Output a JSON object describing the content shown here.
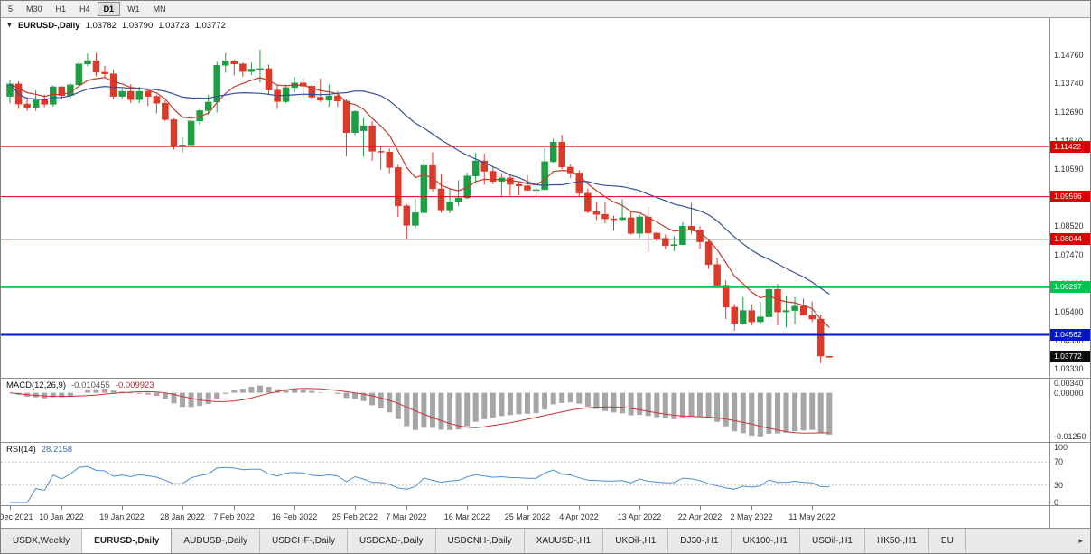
{
  "toolbar": {
    "timeframes": [
      "5",
      "M30",
      "H1",
      "H4",
      "D1",
      "W1",
      "MN"
    ],
    "active": "D1"
  },
  "chart_header": {
    "dropdown_icon": "▼",
    "symbol": "EURUSD-,Daily",
    "open": "1.03782",
    "high": "1.03790",
    "low": "1.03723",
    "close": "1.03772"
  },
  "price_axis": {
    "labels": [
      "1.14760",
      "1.13740",
      "1.12690",
      "1.11640",
      "1.10590",
      "1.09540",
      "1.08520",
      "1.07470",
      "1.06420",
      "1.05400",
      "1.04350",
      "1.03330"
    ],
    "current": {
      "value": "1.03772",
      "color": "#0d0d0d"
    }
  },
  "chart_data": {
    "type": "candlestick",
    "title": "EURUSD-,Daily",
    "symbol": "EURUSD",
    "period": "Daily",
    "up_color": "#1d9e44",
    "down_color": "#dc3a29",
    "y_axis": {
      "top": 1.161,
      "bottom": 1.03
    },
    "dates": [
      "2021.12.31",
      "2022.01.03",
      "2022.01.04",
      "2022.01.05",
      "2022.01.06",
      "2022.01.07",
      "2022.01.10",
      "2022.01.11",
      "2022.01.12",
      "2022.01.13",
      "2022.01.14",
      "2022.01.17",
      "2022.01.18",
      "2022.01.19",
      "2022.01.20",
      "2022.01.21",
      "2022.01.24",
      "2022.01.25",
      "2022.01.26",
      "2022.01.27",
      "2022.01.28",
      "2022.01.31",
      "2022.02.01",
      "2022.02.02",
      "2022.02.03",
      "2022.02.04",
      "2022.02.07",
      "2022.02.08",
      "2022.02.09",
      "2022.02.10",
      "2022.02.11",
      "2022.02.14",
      "2022.02.15",
      "2022.02.16",
      "2022.02.17",
      "2022.02.18",
      "2022.02.21",
      "2022.02.22",
      "2022.02.23",
      "2022.02.24",
      "2022.02.25",
      "2022.02.28",
      "2022.03.01",
      "2022.03.02",
      "2022.03.03",
      "2022.03.04",
      "2022.03.07",
      "2022.03.08",
      "2022.03.09",
      "2022.03.10",
      "2022.03.11",
      "2022.03.14",
      "2022.03.15",
      "2022.03.16",
      "2022.03.17",
      "2022.03.18",
      "2022.03.21",
      "2022.03.22",
      "2022.03.23",
      "2022.03.24",
      "2022.03.25",
      "2022.03.28",
      "2022.03.29",
      "2022.03.30",
      "2022.03.31",
      "2022.04.01",
      "2022.04.04",
      "2022.04.05",
      "2022.04.06",
      "2022.04.07",
      "2022.04.08",
      "2022.04.11",
      "2022.04.12",
      "2022.04.13",
      "2022.04.14",
      "2022.04.15",
      "2022.04.18",
      "2022.04.19",
      "2022.04.20",
      "2022.04.21",
      "2022.04.22",
      "2022.04.25",
      "2022.04.26",
      "2022.04.27",
      "2022.04.28",
      "2022.04.29",
      "2022.05.02",
      "2022.05.03",
      "2022.05.04",
      "2022.05.05",
      "2022.05.06",
      "2022.05.09",
      "2022.05.10",
      "2022.05.11",
      "2022.05.12",
      "2022.05.13"
    ],
    "ohlc": [
      [
        1.1325,
        1.1386,
        1.13,
        1.137
      ],
      [
        1.137,
        1.1379,
        1.1279,
        1.1297
      ],
      [
        1.1297,
        1.1323,
        1.1272,
        1.1285
      ],
      [
        1.1285,
        1.1347,
        1.1272,
        1.1312
      ],
      [
        1.1312,
        1.1332,
        1.1285,
        1.1296
      ],
      [
        1.1296,
        1.1365,
        1.1288,
        1.136
      ],
      [
        1.136,
        1.1362,
        1.1314,
        1.1328
      ],
      [
        1.1328,
        1.1374,
        1.1314,
        1.1367
      ],
      [
        1.1367,
        1.1453,
        1.136,
        1.1443
      ],
      [
        1.1443,
        1.1481,
        1.1435,
        1.1455
      ],
      [
        1.1455,
        1.1483,
        1.1398,
        1.1413
      ],
      [
        1.1413,
        1.1436,
        1.1392,
        1.1407
      ],
      [
        1.1407,
        1.1422,
        1.1314,
        1.1325
      ],
      [
        1.1325,
        1.1358,
        1.1318,
        1.1343
      ],
      [
        1.1343,
        1.1369,
        1.1301,
        1.1313
      ],
      [
        1.1313,
        1.136,
        1.13,
        1.1343
      ],
      [
        1.1343,
        1.1349,
        1.129,
        1.1325
      ],
      [
        1.1325,
        1.1331,
        1.1263,
        1.13
      ],
      [
        1.13,
        1.131,
        1.1235,
        1.124
      ],
      [
        1.124,
        1.1245,
        1.1131,
        1.1145
      ],
      [
        1.1145,
        1.1175,
        1.1121,
        1.1148
      ],
      [
        1.1148,
        1.1248,
        1.114,
        1.1235
      ],
      [
        1.1235,
        1.1279,
        1.1221,
        1.1273
      ],
      [
        1.1273,
        1.133,
        1.1257,
        1.1304
      ],
      [
        1.1304,
        1.1451,
        1.1266,
        1.1438
      ],
      [
        1.1438,
        1.1483,
        1.1411,
        1.1454
      ],
      [
        1.1454,
        1.1459,
        1.1401,
        1.1443
      ],
      [
        1.1443,
        1.1448,
        1.1396,
        1.1415
      ],
      [
        1.1415,
        1.1448,
        1.1403,
        1.1424
      ],
      [
        1.1424,
        1.1495,
        1.1375,
        1.1426
      ],
      [
        1.1426,
        1.1441,
        1.133,
        1.1348
      ],
      [
        1.1348,
        1.1369,
        1.1279,
        1.1306
      ],
      [
        1.1306,
        1.1368,
        1.13,
        1.1357
      ],
      [
        1.1357,
        1.1395,
        1.134,
        1.1374
      ],
      [
        1.1374,
        1.1391,
        1.1324,
        1.1362
      ],
      [
        1.1362,
        1.1369,
        1.1312,
        1.1322
      ],
      [
        1.1322,
        1.139,
        1.1304,
        1.1311
      ],
      [
        1.1311,
        1.1368,
        1.1287,
        1.1327
      ],
      [
        1.1327,
        1.1344,
        1.1286,
        1.1308
      ],
      [
        1.1308,
        1.1315,
        1.1106,
        1.1193
      ],
      [
        1.1193,
        1.1274,
        1.1184,
        1.127
      ],
      [
        1.12,
        1.1246,
        1.1105,
        1.1218
      ],
      [
        1.1218,
        1.1234,
        1.109,
        1.1125
      ],
      [
        1.1125,
        1.1145,
        1.1058,
        1.1122
      ],
      [
        1.1122,
        1.1135,
        1.1045,
        1.1066
      ],
      [
        1.1066,
        1.1075,
        1.0886,
        1.0926
      ],
      [
        1.0926,
        1.0932,
        1.0806,
        1.0855
      ],
      [
        1.0855,
        1.095,
        1.0846,
        1.0901
      ],
      [
        1.0901,
        1.1095,
        1.0891,
        1.1073
      ],
      [
        1.1073,
        1.1121,
        1.0979,
        1.0988
      ],
      [
        1.0988,
        1.1043,
        1.0901,
        1.0911
      ],
      [
        1.0911,
        1.099,
        1.09,
        1.0941
      ],
      [
        1.0941,
        1.102,
        1.0925,
        1.0955
      ],
      [
        1.0955,
        1.1047,
        1.095,
        1.1035
      ],
      [
        1.1035,
        1.1119,
        1.1007,
        1.109
      ],
      [
        1.109,
        1.1117,
        1.1003,
        1.1052
      ],
      [
        1.1052,
        1.1071,
        1.1005,
        1.1015
      ],
      [
        1.1015,
        1.1046,
        1.0962,
        1.1028
      ],
      [
        1.1028,
        1.1044,
        1.0963,
        1.1004
      ],
      [
        1.1004,
        1.1014,
        1.0965,
        1.0999
      ],
      [
        1.0999,
        1.1038,
        1.098,
        1.0983
      ],
      [
        1.0983,
        1.0999,
        1.0944,
        1.0985
      ],
      [
        1.0985,
        1.1137,
        1.0982,
        1.1087
      ],
      [
        1.1087,
        1.1171,
        1.1083,
        1.1158
      ],
      [
        1.1158,
        1.1185,
        1.106,
        1.1067
      ],
      [
        1.1067,
        1.1077,
        1.1027,
        1.1046
      ],
      [
        1.1046,
        1.1056,
        1.096,
        1.0972
      ],
      [
        1.0972,
        1.0989,
        1.0899,
        1.0905
      ],
      [
        1.0905,
        1.0939,
        1.0874,
        1.0895
      ],
      [
        1.0895,
        1.0939,
        1.0863,
        1.0879
      ],
      [
        1.0879,
        1.089,
        1.0836,
        1.0876
      ],
      [
        1.0876,
        1.095,
        1.0872,
        1.0883
      ],
      [
        1.0883,
        1.0904,
        1.0821,
        1.0826
      ],
      [
        1.0826,
        1.0895,
        1.0809,
        1.0886
      ],
      [
        1.0886,
        1.0923,
        1.0757,
        1.0827
      ],
      [
        1.0827,
        1.0832,
        1.0796,
        1.0808
      ],
      [
        1.0808,
        1.0822,
        1.0769,
        1.0781
      ],
      [
        1.0781,
        1.0815,
        1.0761,
        1.0785
      ],
      [
        1.0785,
        1.0867,
        1.0783,
        1.0852
      ],
      [
        1.0852,
        1.0937,
        1.0824,
        1.0838
      ],
      [
        1.0838,
        1.0852,
        1.077,
        1.0795
      ],
      [
        1.0795,
        1.0801,
        1.0697,
        1.0712
      ],
      [
        1.0712,
        1.0738,
        1.0635,
        1.0637
      ],
      [
        1.0637,
        1.0655,
        1.0514,
        1.0557
      ],
      [
        1.0557,
        1.0568,
        1.0471,
        1.0498
      ],
      [
        1.0498,
        1.0593,
        1.0493,
        1.0545
      ],
      [
        1.0545,
        1.0567,
        1.049,
        1.0504
      ],
      [
        1.0504,
        1.0577,
        1.0494,
        1.0522
      ],
      [
        1.0522,
        1.0632,
        1.0507,
        1.0622
      ],
      [
        1.0622,
        1.0642,
        1.0492,
        1.054
      ],
      [
        1.054,
        1.0599,
        1.0483,
        1.0545
      ],
      [
        1.0545,
        1.0594,
        1.0495,
        1.0561
      ],
      [
        1.0561,
        1.0588,
        1.0526,
        1.0528
      ],
      [
        1.0528,
        1.0578,
        1.0503,
        1.0514
      ],
      [
        1.0514,
        1.053,
        1.0354,
        1.0379
      ],
      [
        1.03782,
        1.0379,
        1.03723,
        1.03772
      ]
    ],
    "moving_averages": [
      {
        "type": "ema",
        "period": 8,
        "color": "#c23b2e"
      },
      {
        "type": "sma",
        "period": 20,
        "color": "#33509b"
      }
    ],
    "hlines": [
      {
        "label": "1.11422",
        "price": 1.11422,
        "color": "#dd0000",
        "width": 1
      },
      {
        "label": "1.09596",
        "price": 1.09596,
        "color": "#dd0000",
        "width": 1
      },
      {
        "label": "1.08044",
        "price": 1.08044,
        "color": "#dd0000",
        "width": 1
      },
      {
        "label": "1.06297",
        "price": 1.06297,
        "color": "#00c44e",
        "width": 2
      },
      {
        "label": "1.04562",
        "price": 1.04562,
        "color": "#0016cc",
        "width": 2
      }
    ],
    "x_labels": [
      {
        "text": "31 Dec 2021",
        "index": 0
      },
      {
        "text": "10 Jan 2022",
        "index": 6
      },
      {
        "text": "19 Jan 2022",
        "index": 13
      },
      {
        "text": "28 Jan 2022",
        "index": 20
      },
      {
        "text": "7 Feb 2022",
        "index": 26
      },
      {
        "text": "16 Feb 2022",
        "index": 33
      },
      {
        "text": "25 Feb 2022",
        "index": 40
      },
      {
        "text": "7 Mar 2022",
        "index": 46
      },
      {
        "text": "16 Mar 2022",
        "index": 53
      },
      {
        "text": "25 Mar 2022",
        "index": 60
      },
      {
        "text": "4 Apr 2022",
        "index": 66
      },
      {
        "text": "13 Apr 2022",
        "index": 73
      },
      {
        "text": "22 Apr 2022",
        "index": 80
      },
      {
        "text": "2 May 2022",
        "index": 86
      },
      {
        "text": "11 May 2022",
        "index": 93
      }
    ]
  },
  "macd": {
    "label": "MACD(12,26,9)",
    "value_main": "-0.010455",
    "value_signal": "-0.009923",
    "params": {
      "fast": 12,
      "slow": 26,
      "signal": 9
    },
    "scale": {
      "top": 0.004,
      "bottom": -0.014
    },
    "axis_labels": [
      {
        "text": "0.00340",
        "value": 0.0034
      },
      {
        "text": "0.00000",
        "value": 0.0
      },
      {
        "text": "-0.01250",
        "value": -0.0125
      }
    ],
    "colors": {
      "histogram": "#a6a6a6",
      "signal": "#cc3333"
    }
  },
  "rsi": {
    "label": "RSI(14)",
    "value": "28.2158",
    "period": 14,
    "levels": [
      70,
      30
    ],
    "color": "#4a8fd4",
    "axis_labels": [
      {
        "text": "100",
        "value": 100
      },
      {
        "text": "70",
        "value": 70
      },
      {
        "text": "30",
        "value": 30
      },
      {
        "text": "0",
        "value": 0
      }
    ]
  },
  "tabs": {
    "items": [
      "USDX,Weekly",
      "EURUSD-,Daily",
      "AUDUSD-,Daily",
      "USDCHF-,Daily",
      "USDCAD-,Daily",
      "USDCNH-,Daily",
      "XAUUSD-,H1",
      "UKOil-,H1",
      "DJ30-,H1",
      "UK100-,H1",
      "USOil-,H1",
      "HK50-,H1",
      "EU"
    ],
    "active_index": 1,
    "scroll_icon": "▸"
  }
}
